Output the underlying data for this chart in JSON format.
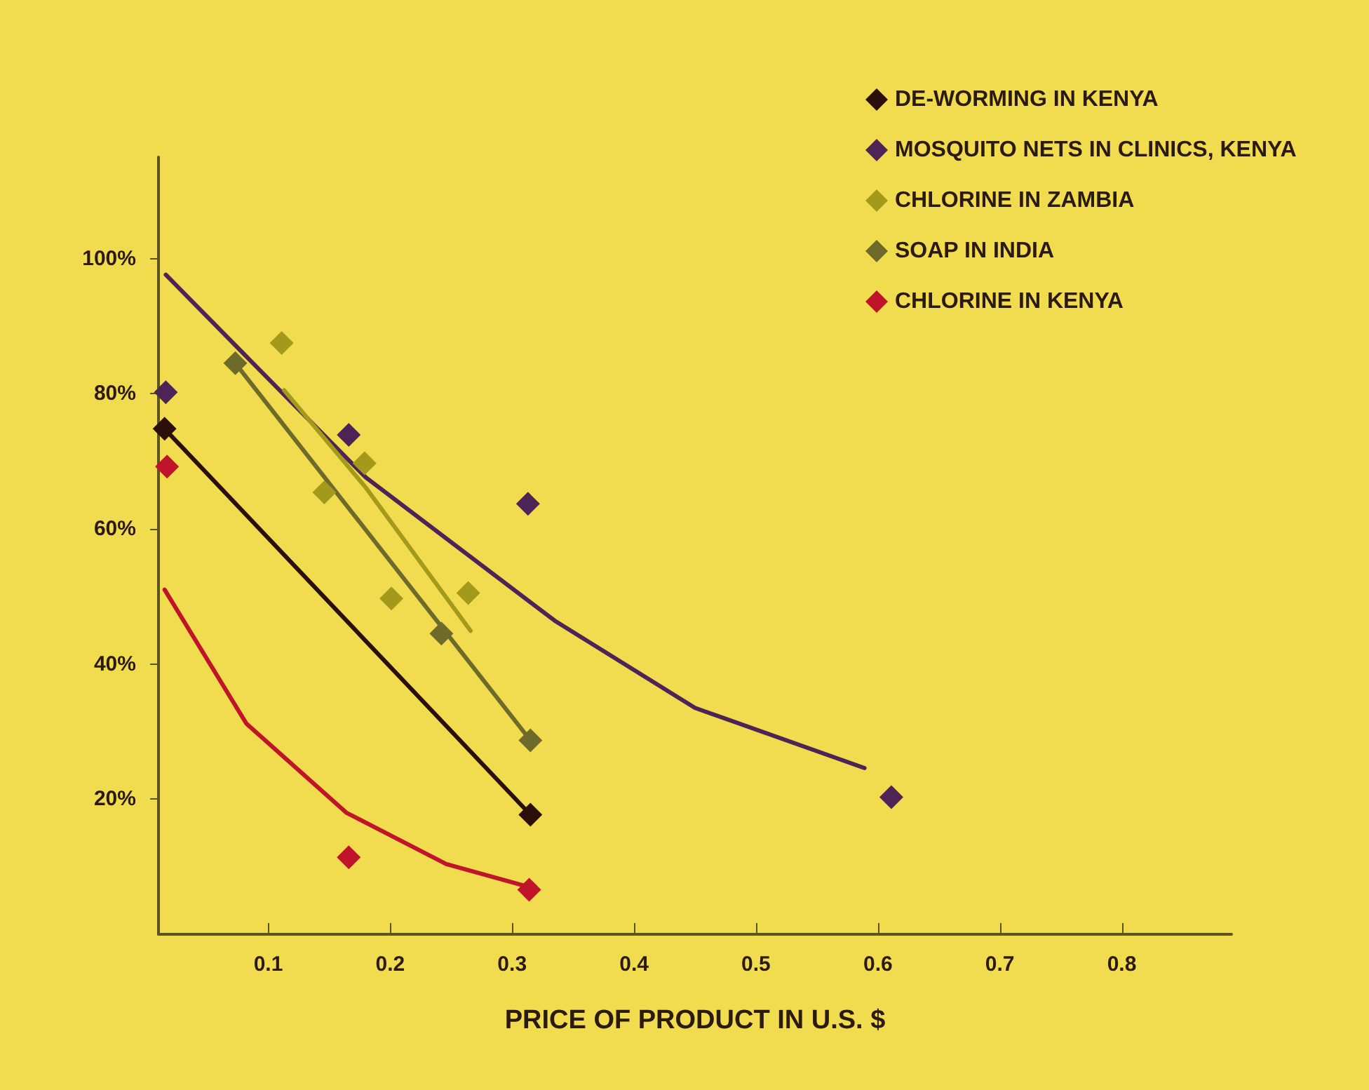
{
  "chart_data": {
    "type": "scatter",
    "xlabel": "PRICE OF PRODUCT IN U.S. $",
    "xlim": [
      0.01,
      0.89
    ],
    "ylim": [
      0,
      115
    ],
    "xticks": [
      0.1,
      0.2,
      0.3,
      0.4,
      0.5,
      0.6,
      0.7,
      0.8
    ],
    "yticks": [
      {
        "value": 20,
        "label": "20%"
      },
      {
        "value": 40,
        "label": "40%"
      },
      {
        "value": 60,
        "label": "60%"
      },
      {
        "value": 80,
        "label": "80%"
      },
      {
        "value": 100,
        "label": "100%"
      }
    ],
    "grid": false,
    "legend": "top right",
    "marker": "diamond",
    "line_style": "solid",
    "series": [
      {
        "name": "DE-WORMING IN KENYA",
        "color": "#2b0f0a",
        "x": [
          0.015,
          0.315
        ],
        "values": [
          74.8,
          17.7
        ]
      },
      {
        "name": "MOSQUITO NETS IN CLINICS, KENYA",
        "color": "#4e2457",
        "x": [
          0.016,
          0.166,
          0.313,
          0.611
        ],
        "values": [
          80.2,
          73.9,
          63.7,
          20.3
        ]
      },
      {
        "name": "CHLORINE IN ZAMBIA",
        "color": "#a39a1c",
        "x": [
          0.111,
          0.146,
          0.179,
          0.201,
          0.264
        ],
        "values": [
          87.5,
          65.4,
          69.7,
          49.7,
          50.5
        ]
      },
      {
        "name": "SOAP IN INDIA",
        "color": "#6e6a2a",
        "x": [
          0.073,
          0.242,
          0.315
        ],
        "values": [
          84.5,
          44.5,
          28.7
        ]
      },
      {
        "name": "CHLORINE IN KENYA",
        "color": "#c0142a",
        "x": [
          0.017,
          0.166,
          0.314
        ],
        "values": [
          69.2,
          11.4,
          6.6
        ]
      },
      {
        "type": "line",
        "marker": "none",
        "color": "#2b0f0a",
        "x": [
          0.015,
          0.315
        ],
        "values": [
          74.8,
          17.7
        ]
      },
      {
        "type": "line",
        "marker": "none",
        "color": "#4e2457",
        "x": [
          0.016,
          0.082,
          0.18,
          0.335,
          0.45,
          0.589
        ],
        "values": [
          97.6,
          85.5,
          67.6,
          46.4,
          33.5,
          24.6
        ]
      },
      {
        "type": "line",
        "marker": "none",
        "color": "#a39a1c",
        "x": [
          0.113,
          0.18,
          0.266
        ],
        "values": [
          80.5,
          66.1,
          44.9
        ]
      },
      {
        "type": "line",
        "marker": "none",
        "color": "#6e6a2a",
        "x": [
          0.073,
          0.315
        ],
        "values": [
          84.5,
          28.7
        ]
      },
      {
        "type": "line",
        "marker": "none",
        "color": "#c0142a",
        "x": [
          0.015,
          0.082,
          0.164,
          0.246,
          0.314
        ],
        "values": [
          51.0,
          31.2,
          18.0,
          10.4,
          7.0
        ]
      }
    ]
  }
}
